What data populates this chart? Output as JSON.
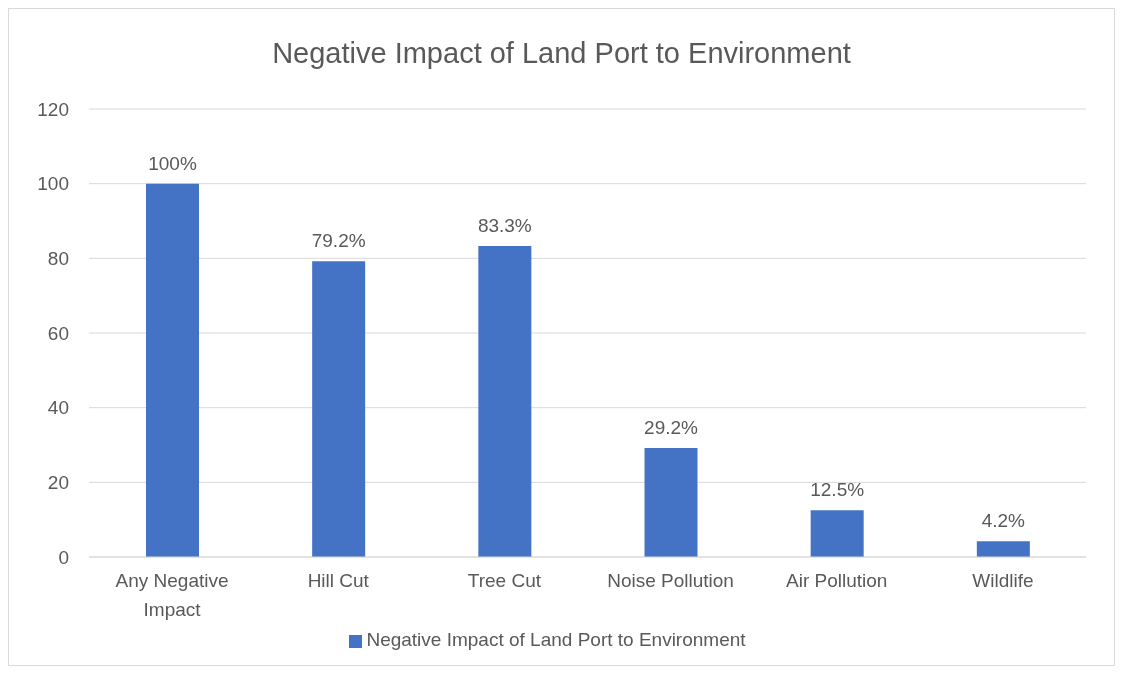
{
  "chart_data": {
    "type": "bar",
    "title": "Negative Impact of Land Port to Environment",
    "categories": [
      "Any Negative Impact",
      "Hill Cut",
      "Tree Cut",
      "Noise Pollution",
      "Air Pollution",
      "Wildlife"
    ],
    "series": [
      {
        "name": "Negative Impact of Land Port to Environment",
        "color": "#4472c4",
        "values": [
          100,
          79.2,
          83.3,
          29.2,
          12.5,
          4.2
        ],
        "value_labels": [
          "100%",
          "79.2%",
          "83.3%",
          "29.2%",
          "12.5%",
          "4.2%"
        ]
      }
    ],
    "ylim": [
      0,
      120
    ],
    "yticks": [
      0,
      20,
      40,
      60,
      80,
      100,
      120
    ],
    "grid": "y",
    "legend": "bottom"
  }
}
